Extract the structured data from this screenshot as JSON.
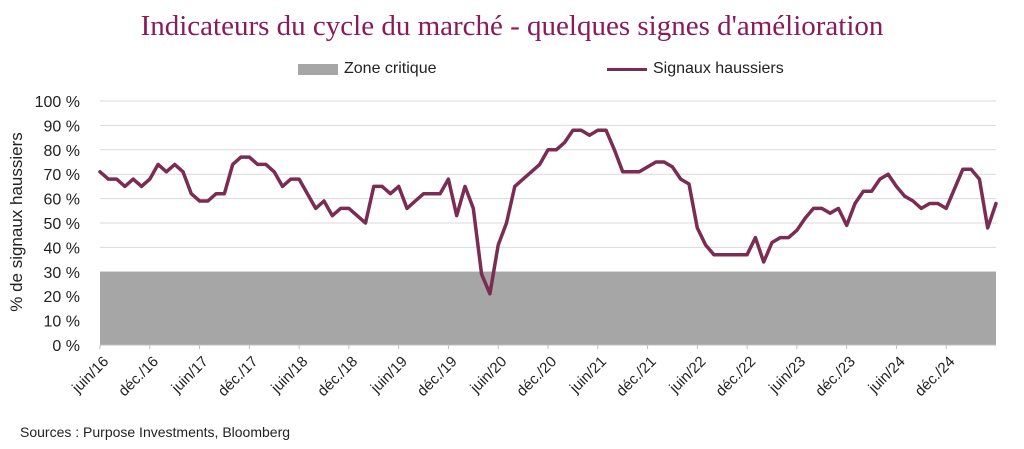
{
  "chart_data": {
    "type": "line",
    "title": "Indicateurs du cycle du marché - quelques signes d'amélioration",
    "ylabel": "% de signaux haussiers",
    "xlabel": "",
    "ylim": [
      0,
      100
    ],
    "yticks": [
      "0 %",
      "10 %",
      "20 %",
      "30 %",
      "40 %",
      "50 %",
      "60 %",
      "70 %",
      "80 %",
      "90 %",
      "100 %"
    ],
    "xticks": [
      "juin/16",
      "déc./16",
      "juin/17",
      "déc./17",
      "juin/18",
      "déc./18",
      "juin/19",
      "déc./19",
      "juin/20",
      "déc./20",
      "juin/21",
      "déc./21",
      "juin/22",
      "déc./22",
      "juin/23",
      "déc./23",
      "juin/24",
      "déc./24"
    ],
    "grid": true,
    "legend_position": "top",
    "series": [
      {
        "name": "Zone critique",
        "type": "area",
        "color": "#a6a6a6",
        "value": 30
      },
      {
        "name": "Signaux haussiers",
        "type": "line",
        "color": "#7b2c52",
        "x_start": "2016-06",
        "x_step": "1 month",
        "values": [
          71,
          68,
          68,
          65,
          68,
          65,
          68,
          74,
          71,
          74,
          71,
          62,
          59,
          59,
          62,
          62,
          74,
          77,
          77,
          74,
          74,
          71,
          65,
          68,
          68,
          62,
          56,
          59,
          53,
          56,
          56,
          53,
          50,
          65,
          65,
          62,
          65,
          56,
          59,
          62,
          62,
          62,
          68,
          53,
          65,
          56,
          29,
          21,
          41,
          50,
          65,
          68,
          71,
          74,
          80,
          80,
          83,
          88,
          88,
          86,
          88,
          88,
          80,
          71,
          71,
          71,
          73,
          75,
          75,
          73,
          68,
          66,
          48,
          41,
          37,
          37,
          37,
          37,
          37,
          44,
          34,
          42,
          44,
          44,
          47,
          52,
          56,
          56,
          54,
          56,
          49,
          58,
          63,
          63,
          68,
          70,
          65,
          61,
          59,
          56,
          58,
          58,
          56,
          64,
          72,
          72,
          68,
          48,
          58
        ]
      }
    ]
  },
  "source": "Sources : Purpose Investments, Bloomberg"
}
